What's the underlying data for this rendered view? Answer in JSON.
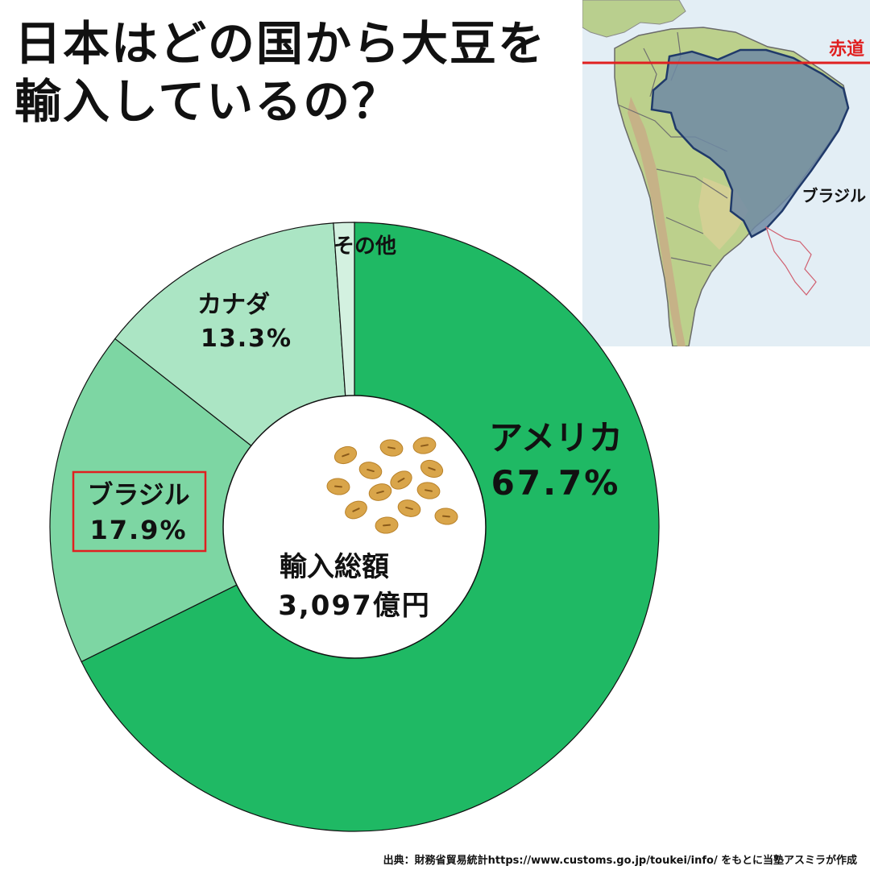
{
  "title": {
    "line1": "日本はどの国から大豆を",
    "line2": "輸入しているの？"
  },
  "colors": {
    "usa": "#1fb964",
    "brazil": "#7dd6a3",
    "canada": "#abe5c4",
    "other": "#d3f1e0",
    "highlight_box": "#e02020",
    "equator": "#e02020",
    "brazil_map": "#6f89a4"
  },
  "chart_data": {
    "type": "pie",
    "labels": [
      "アメリカ",
      "ブラジル",
      "カナダ",
      "その他"
    ],
    "values": [
      67.7,
      17.9,
      13.3,
      1.1
    ],
    "value_labels": [
      "67.7%",
      "17.9%",
      "13.3%",
      ""
    ],
    "highlighted": "ブラジル",
    "center_text": {
      "line1": "輸入総額",
      "line2": "3,097億円"
    }
  },
  "map": {
    "equator_label": "赤道",
    "country_label": "ブラジル",
    "illustration": "soybeans-icon"
  },
  "source": "出典：財務省貿易統計https://www.customs.go.jp/toukei/info/  をもとに当塾アスミラが作成"
}
